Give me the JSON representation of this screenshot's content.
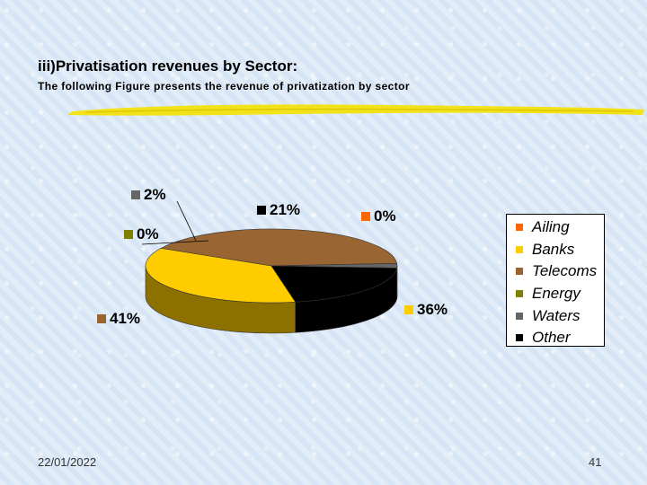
{
  "slide": {
    "title": "iii)Privatisation revenues by Sector:",
    "subtitle": "The following Figure presents the revenue of privatization by sector",
    "date": "22/01/2022",
    "page_number": "41"
  },
  "chart_data": {
    "type": "pie",
    "title": "",
    "legend_position": "right",
    "categories": [
      "Ailing",
      "Banks",
      "Telecoms",
      "Energy",
      "Waters",
      "Other"
    ],
    "values": [
      0,
      36,
      41,
      0,
      2,
      21
    ],
    "labels": [
      "0%",
      "36%",
      "41%",
      "0%",
      "2%",
      "21%"
    ],
    "colors": [
      "#ff6600",
      "#ffcc00",
      "#996633",
      "#808000",
      "#666666",
      "#000000"
    ]
  }
}
